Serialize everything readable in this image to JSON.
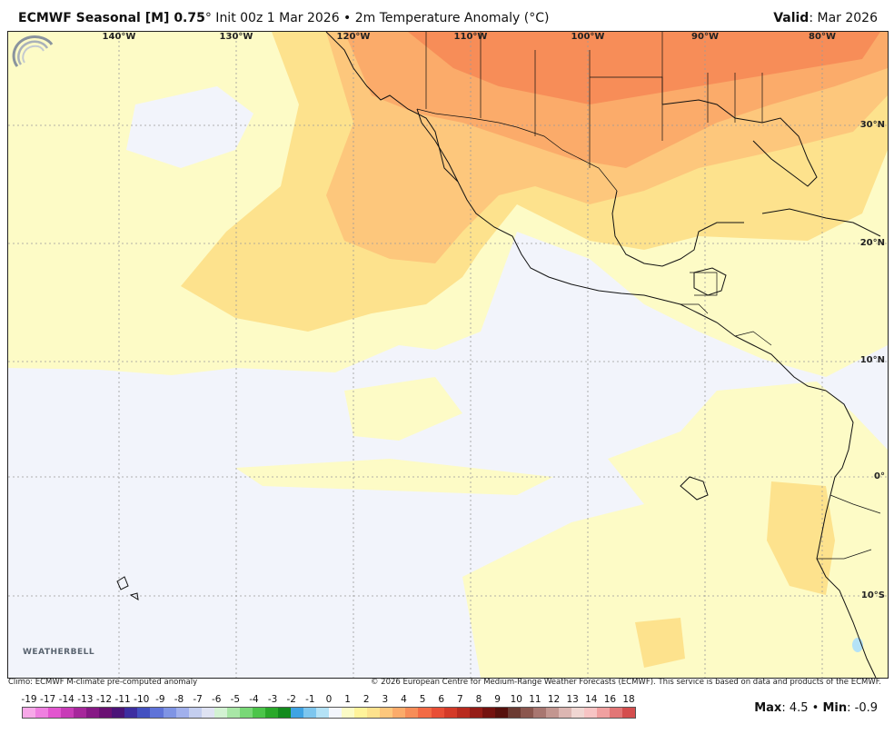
{
  "header": {
    "model": "ECMWF Seasonal [M] 0.75",
    "degree": "°",
    "init": " Init 00z 1 Mar 2026 • 2m Temperature Anomaly (°C)",
    "valid_label": "Valid",
    "valid_value": ": Mar 2026"
  },
  "map": {
    "lon_labels": [
      "140°W",
      "130°W",
      "120°W",
      "110°W",
      "100°W",
      "90°W",
      "80°W"
    ],
    "lat_labels": [
      "30°N",
      "20°N",
      "10°N",
      "0°",
      "10°S"
    ],
    "logo_text": "WEATHERBELL"
  },
  "footer": {
    "climo": "Climo: ECMWF M-climate pre-computed anomaly",
    "copyright": "© 2026 European Centre for Medium-Range Weather Forecasts (ECMWF). This service is based on data and products of the ECMWF."
  },
  "scale": {
    "labels": [
      "-19",
      "-17",
      "-14",
      "-13",
      "-12",
      "-11",
      "-10",
      "-9",
      "-8",
      "-7",
      "-6",
      "-5",
      "-4",
      "-3",
      "-2",
      "-1",
      "0",
      "1",
      "2",
      "3",
      "4",
      "5",
      "6",
      "7",
      "8",
      "9",
      "10",
      "11",
      "12",
      "13",
      "14",
      "16",
      "18"
    ],
    "colors": [
      "#f7a8e8",
      "#ef7fe0",
      "#e255cf",
      "#c83cb7",
      "#a6279b",
      "#861985",
      "#6a1173",
      "#4b1478",
      "#3d2ea0",
      "#4350c0",
      "#5f73d8",
      "#7f94e4",
      "#a1b0ec",
      "#c4ceef",
      "#dfe3f3",
      "#d3f2d3",
      "#a8e6a6",
      "#79d877",
      "#4cc54a",
      "#2aa82a",
      "#138a1e",
      "#3fa3e3",
      "#7dc6ee",
      "#b4e2f6",
      "#f3f6fc",
      "#fbfbc6",
      "#fff39a",
      "#fde28d",
      "#fdc77c",
      "#fbab6a",
      "#f78d58",
      "#f36a44",
      "#e84e35",
      "#d43a28",
      "#b82a1e",
      "#951c16",
      "#74120f",
      "#56100c",
      "#6b3a32",
      "#8b564e",
      "#a87670",
      "#c39690",
      "#dcb6b2",
      "#f0d6d2",
      "#f7c4c4",
      "#f0a0a0",
      "#e27676",
      "#d44e4e"
    ]
  },
  "stats": {
    "max_label": "Max",
    "max_value": ": 4.5 • ",
    "min_label": "Min",
    "min_value": ": -0.9"
  }
}
